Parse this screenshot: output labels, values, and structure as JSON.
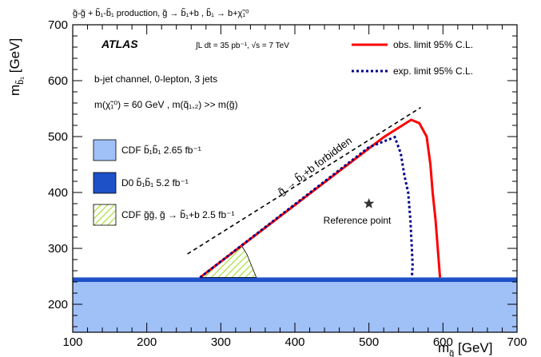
{
  "chart_data": {
    "type": "line",
    "title": "g̃-g̃ + b̃₁-b̃₁ production, g̃ → b̃₁+b , b̃₁ → b+χ̃₁⁰",
    "xlabel": "m_g̃ [GeV]",
    "ylabel": "m_b̃₁ [GeV]",
    "xlim": [
      100,
      700
    ],
    "ylim": [
      150,
      700
    ],
    "xticks": [
      100,
      200,
      300,
      400,
      500,
      600,
      700
    ],
    "yticks": [
      200,
      300,
      400,
      500,
      600,
      700
    ],
    "grid": false,
    "legend": "top-right and left",
    "texts": {
      "experiment": "ATLAS",
      "lumi": "∫L dt = 35 pb⁻¹, √s = 7 TeV",
      "channel": "b-jet channel, 0-lepton, 3 jets",
      "assumption": "m(χ̃₁⁰) = 60 GeV , m(q̃₁,₂) >> m(g̃)",
      "forbidden": "g̃ → b̃₁+b forbidden",
      "reference": "Reference point"
    },
    "series": [
      {
        "name": "obs. limit 95% C.L.",
        "style": "solid",
        "color": "#ff0000",
        "x": [
          272,
          520,
          557,
          568,
          578,
          583,
          586,
          590,
          593,
          595,
          596
        ],
        "y": [
          248,
          499,
          530,
          524,
          500,
          450,
          400,
          350,
          300,
          265,
          248
        ]
      },
      {
        "name": "exp. limit 95% C.L.",
        "style": "dotted",
        "color": "#00008b",
        "x": [
          272,
          500,
          535,
          543,
          548,
          553,
          556,
          558,
          559,
          558
        ],
        "y": [
          248,
          481,
          499,
          470,
          430,
          400,
          350,
          300,
          270,
          248
        ]
      },
      {
        "name": "kinematic limit",
        "style": "dashed",
        "color": "#000000",
        "x": [
          255,
          570
        ],
        "y": [
          290,
          552
        ]
      }
    ],
    "regions": [
      {
        "name": "CDF b̃₁b̃₁ 2.65 fb⁻¹",
        "color": "#a0c0f8"
      },
      {
        "name": "D0 b̃₁b̃₁ 5.2 fb⁻¹",
        "color": "#1e50c8"
      },
      {
        "name": "CDF g̃g̃, g̃ → b̃₁+b 2.5 fb⁻¹",
        "color": "#a8e040"
      }
    ],
    "reference_point": {
      "x": 500,
      "y": 380
    }
  }
}
